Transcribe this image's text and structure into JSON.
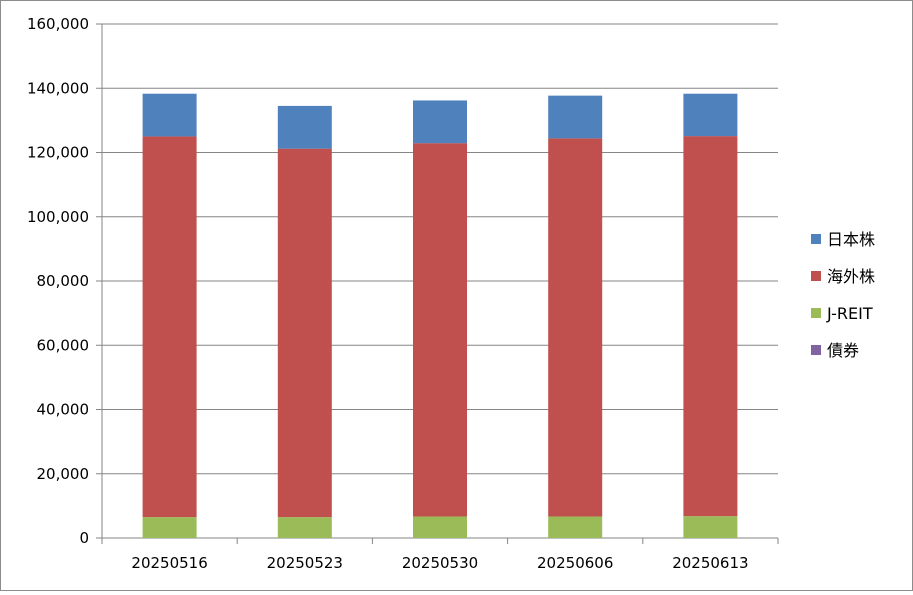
{
  "chart_data": {
    "type": "bar",
    "stacked": true,
    "title": "",
    "xlabel": "",
    "ylabel": "",
    "ylim": [
      0,
      160000
    ],
    "yticks": [
      0,
      20000,
      40000,
      60000,
      80000,
      100000,
      120000,
      140000,
      160000
    ],
    "ytick_labels": [
      "0",
      "20,000",
      "40,000",
      "60,000",
      "80,000",
      "100,000",
      "120,000",
      "140,000",
      "160,000"
    ],
    "grid": true,
    "legend_position": "right",
    "categories": [
      "20250516",
      "20250523",
      "20250530",
      "20250606",
      "20250613"
    ],
    "series": [
      {
        "name": "債券",
        "color": "#8064a2",
        "values": [
          0,
          0,
          0,
          0,
          0
        ]
      },
      {
        "name": "J-REIT",
        "color": "#9bbb59",
        "values": [
          6500,
          6500,
          6700,
          6700,
          6800
        ]
      },
      {
        "name": "海外株",
        "color": "#c0504d",
        "values": [
          118500,
          114700,
          116200,
          117700,
          118300
        ]
      },
      {
        "name": "日本株",
        "color": "#4f81bd",
        "values": [
          13300,
          13300,
          13300,
          13300,
          13200
        ]
      }
    ],
    "legend_order": [
      "日本株",
      "海外株",
      "J-REIT",
      "債券"
    ]
  }
}
